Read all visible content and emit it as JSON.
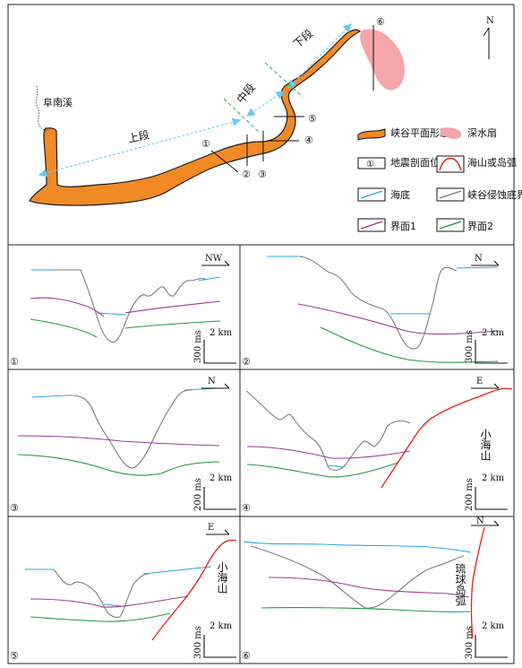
{
  "map": {
    "north": "N",
    "river": "阜南溪",
    "segments": {
      "upper": "上段",
      "middle": "中段",
      "lower": "下段"
    },
    "section_numbers": [
      "①",
      "②",
      "③",
      "④",
      "⑤",
      "⑥"
    ]
  },
  "legend": {
    "canyon_shape": "峡谷平面形态",
    "deep_fan": "深水扇",
    "seismic_profile": "地震剖面位置",
    "seamount_arc": "海山或岛弧",
    "seafloor": "海底",
    "erosion_boundary": "峡谷侵蚀底界",
    "interface1": "界面1",
    "interface2": "界面2",
    "profile_symbol": "①"
  },
  "panels": [
    {
      "num": "①",
      "dir": "NW",
      "scale_v": "300 ms",
      "scale_h": "2 km"
    },
    {
      "num": "②",
      "dir": "N",
      "scale_v": "300 ms",
      "scale_h": "2 km"
    },
    {
      "num": "③",
      "dir": "N",
      "scale_v": "200 ms",
      "scale_h": "2 km"
    },
    {
      "num": "④",
      "dir": "E",
      "scale_v": "200 ms",
      "scale_h": "2 km",
      "feature": "小海山"
    },
    {
      "num": "⑤",
      "dir": "E",
      "scale_v": "300 ms",
      "scale_h": "2 km",
      "feature": "小海山"
    },
    {
      "num": "⑥",
      "dir": "N",
      "scale_v": "300 ms",
      "scale_h": "2 km",
      "feature": "琉球岛弧"
    }
  ],
  "colors": {
    "canyon_fill": "#f08a24",
    "fan_fill": "#f4a6ab",
    "seafloor": "#29a9e1",
    "erosion": "#7d7d7d",
    "interface1": "#9b3c8f",
    "interface2": "#1e9a45",
    "seamount": "#e3201b",
    "guide": "#7fcdee",
    "segment_dash": "#2aa84a"
  }
}
